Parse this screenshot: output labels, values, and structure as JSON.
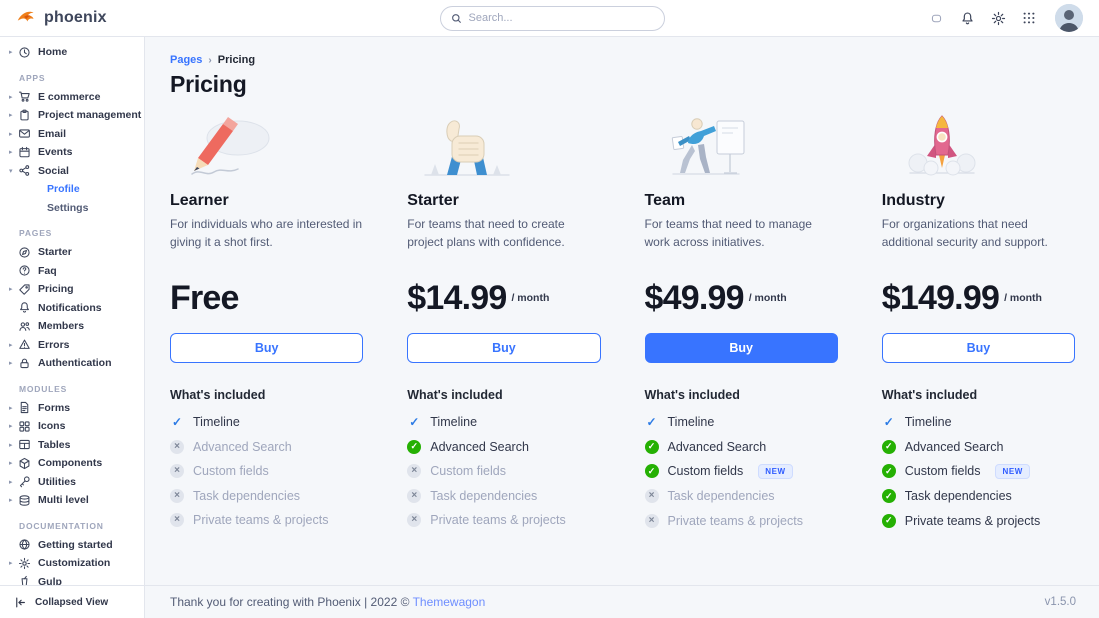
{
  "navbar": {
    "logo_text": "phoenix",
    "search_placeholder": "Search..."
  },
  "sidebar": {
    "collapsed_label": "Collapsed View",
    "sections": [
      {
        "label": "",
        "items": [
          {
            "label": "Home",
            "icon": "clock",
            "caret": "right"
          }
        ]
      },
      {
        "label": "APPS",
        "items": [
          {
            "label": "E commerce",
            "icon": "cart",
            "caret": "right"
          },
          {
            "label": "Project management",
            "icon": "clipboard",
            "caret": "right"
          },
          {
            "label": "Email",
            "icon": "mail",
            "caret": "right"
          },
          {
            "label": "Events",
            "icon": "calendar",
            "caret": "right"
          },
          {
            "label": "Social",
            "icon": "share",
            "caret": "down",
            "children": [
              {
                "label": "Profile",
                "active": true
              },
              {
                "label": "Settings",
                "active": false
              }
            ]
          }
        ]
      },
      {
        "label": "PAGES",
        "items": [
          {
            "label": "Starter",
            "icon": "compass",
            "caret": ""
          },
          {
            "label": "Faq",
            "icon": "question",
            "caret": ""
          },
          {
            "label": "Pricing",
            "icon": "tag",
            "caret": "right"
          },
          {
            "label": "Notifications",
            "icon": "bell",
            "caret": ""
          },
          {
            "label": "Members",
            "icon": "users",
            "caret": ""
          },
          {
            "label": "Errors",
            "icon": "alert",
            "caret": "right"
          },
          {
            "label": "Authentication",
            "icon": "lock",
            "caret": "right"
          }
        ]
      },
      {
        "label": "MODULES",
        "items": [
          {
            "label": "Forms",
            "icon": "file",
            "caret": "right"
          },
          {
            "label": "Icons",
            "icon": "shapes",
            "caret": "right"
          },
          {
            "label": "Tables",
            "icon": "table",
            "caret": "right"
          },
          {
            "label": "Components",
            "icon": "package",
            "caret": "right"
          },
          {
            "label": "Utilities",
            "icon": "wrench",
            "caret": "right"
          },
          {
            "label": "Multi level",
            "icon": "layers",
            "caret": "right"
          }
        ]
      },
      {
        "label": "DOCUMENTATION",
        "items": [
          {
            "label": "Getting started",
            "icon": "globe",
            "caret": ""
          },
          {
            "label": "Customization",
            "icon": "gear",
            "caret": "right"
          },
          {
            "label": "Gulp",
            "icon": "cup",
            "caret": ""
          }
        ]
      }
    ]
  },
  "breadcrumb": {
    "parent": "Pages",
    "separator": "›",
    "current": "Pricing"
  },
  "page_title": "Pricing",
  "pricing": {
    "included_title": "What's included",
    "plans": [
      {
        "name": "Learner",
        "illustration": "pencil",
        "description": "For individuals who are interested in giving it a shot first.",
        "price": "Free",
        "period": "",
        "button": {
          "label": "Buy",
          "variant": "outline"
        },
        "features": [
          {
            "label": "Timeline",
            "state": "check"
          },
          {
            "label": "Advanced Search",
            "state": "off"
          },
          {
            "label": "Custom fields",
            "state": "off"
          },
          {
            "label": "Task dependencies",
            "state": "off"
          },
          {
            "label": "Private teams & projects",
            "state": "off"
          }
        ]
      },
      {
        "name": "Starter",
        "illustration": "thumbs",
        "description": "For teams that need to create project plans with confidence.",
        "price": "$14.99",
        "period": "/ month",
        "button": {
          "label": "Buy",
          "variant": "outline"
        },
        "features": [
          {
            "label": "Timeline",
            "state": "check"
          },
          {
            "label": "Advanced Search",
            "state": "on"
          },
          {
            "label": "Custom fields",
            "state": "off"
          },
          {
            "label": "Task dependencies",
            "state": "off"
          },
          {
            "label": "Private teams & projects",
            "state": "off"
          }
        ]
      },
      {
        "name": "Team",
        "illustration": "presenter",
        "description": "For teams that need to manage work across initiatives.",
        "price": "$49.99",
        "period": "/ month",
        "button": {
          "label": "Buy",
          "variant": "solid"
        },
        "features": [
          {
            "label": "Timeline",
            "state": "check"
          },
          {
            "label": "Advanced Search",
            "state": "on"
          },
          {
            "label": "Custom fields",
            "state": "on",
            "badge": "NEW"
          },
          {
            "label": "Task dependencies",
            "state": "off"
          },
          {
            "label": "Private teams & projects",
            "state": "off"
          }
        ]
      },
      {
        "name": "Industry",
        "illustration": "rocket",
        "description": "For organizations that need additional security and support.",
        "price": "$149.99",
        "period": "/ month",
        "button": {
          "label": "Buy",
          "variant": "outline"
        },
        "features": [
          {
            "label": "Timeline",
            "state": "check"
          },
          {
            "label": "Advanced Search",
            "state": "on"
          },
          {
            "label": "Custom fields",
            "state": "on",
            "badge": "NEW"
          },
          {
            "label": "Task dependencies",
            "state": "on"
          },
          {
            "label": "Private teams & projects",
            "state": "on"
          }
        ]
      }
    ]
  },
  "footer": {
    "text": "Thank you for creating with Phoenix | 2022 ©",
    "link_label": "Themewagon",
    "version": "v1.5.0"
  },
  "colors": {
    "primary": "#3874ff",
    "success": "#25b003",
    "background": "#f5f7fa",
    "disabled_text": "#9fa6bc"
  }
}
